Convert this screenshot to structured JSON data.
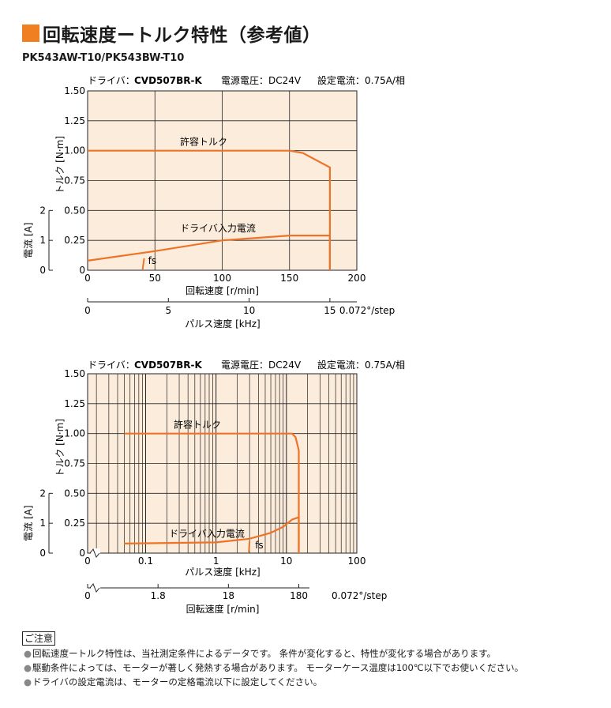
{
  "header": {
    "title": "回転速度ートルク特性（参考値）",
    "model": "PK543AW-T10/PK543BW-T10",
    "accent": "#f07f22"
  },
  "colors": {
    "curve": "#ee7326",
    "plot_bg": "#fcecdc",
    "grid": "#222222"
  },
  "chart_data": [
    {
      "type": "line",
      "conditions": {
        "driver_label": "ドライバ：",
        "driver_model": "CVD507BR-K",
        "voltage": "電源電圧：DC24V",
        "current": "設定電流：0.75A/相"
      },
      "xlabel": "回転速度 [r/min]",
      "ylabel": "トルク [N·m]",
      "y2label": "電流 [A]",
      "x2label": "パルス速度 [kHz]",
      "xlim": [
        0,
        200
      ],
      "ylim": [
        0,
        1.5
      ],
      "x_ticks": [
        "0",
        "50",
        "100",
        "150",
        "200"
      ],
      "y_ticks": [
        "0",
        "0.25",
        "0.50",
        "0.75",
        "1.00",
        "1.25",
        "1.50"
      ],
      "y2_ticks": [
        "0",
        "1",
        "2"
      ],
      "x2_ticks": [
        "0",
        "5",
        "10",
        "15"
      ],
      "x2_unit": "0.072°/step",
      "series": [
        {
          "name": "許容トルク",
          "x": [
            0,
            150,
            160,
            180,
            180
          ],
          "y": [
            1.0,
            1.0,
            0.98,
            0.86,
            0.0
          ]
        },
        {
          "name": "ドライバ入力電流",
          "x": [
            0,
            50,
            100,
            150,
            180,
            180
          ],
          "y": [
            0.08,
            0.16,
            0.25,
            0.29,
            0.29,
            0.0
          ]
        }
      ],
      "fs": {
        "label": "fs",
        "x": 42,
        "y": 0.1
      }
    },
    {
      "type": "line",
      "xscale": "log",
      "conditions": {
        "driver_label": "ドライバ：",
        "driver_model": "CVD507BR-K",
        "voltage": "電源電圧：DC24V",
        "current": "設定電流：0.75A/相"
      },
      "xlabel": "パルス速度 [kHz]",
      "ylabel": "トルク [N·m]",
      "y2label": "電流 [A]",
      "x2label": "回転速度 [r/min]",
      "xlim": [
        0.015,
        100
      ],
      "ylim": [
        0,
        1.5
      ],
      "x_ticks": [
        "0",
        "0.1",
        "1",
        "10",
        "100"
      ],
      "y_ticks": [
        "0",
        "0.25",
        "0.50",
        "0.75",
        "1.00",
        "1.25",
        "1.50"
      ],
      "y2_ticks": [
        "0",
        "1",
        "2"
      ],
      "x2_ticks": [
        "0",
        "1.8",
        "18",
        "180"
      ],
      "x2_unit": "0.072°/step",
      "series": [
        {
          "name": "許容トルク",
          "x": [
            0.05,
            12,
            13.5,
            15,
            15
          ],
          "y": [
            1.0,
            1.0,
            0.97,
            0.86,
            0.0
          ]
        },
        {
          "name": "ドライバ入力電流",
          "x": [
            0.05,
            1,
            3,
            6,
            9,
            12,
            15,
            15
          ],
          "y": [
            0.08,
            0.09,
            0.12,
            0.17,
            0.22,
            0.28,
            0.3,
            0.0
          ]
        }
      ],
      "fs": {
        "label": "fs",
        "x": 3,
        "y": 0.1
      }
    }
  ],
  "caution": {
    "heading": "ご注意",
    "notes": [
      "回転速度ートルク特性は、当社測定条件によるデータです。 条件が変化すると、特性が変化する場合があります。",
      "駆動条件によっては、モーターが著しく発熱する場合があります。 モーターケース温度は100℃以下でお使いください。",
      "ドライバの設定電流は、モーターの定格電流以下に設定してください。"
    ]
  }
}
